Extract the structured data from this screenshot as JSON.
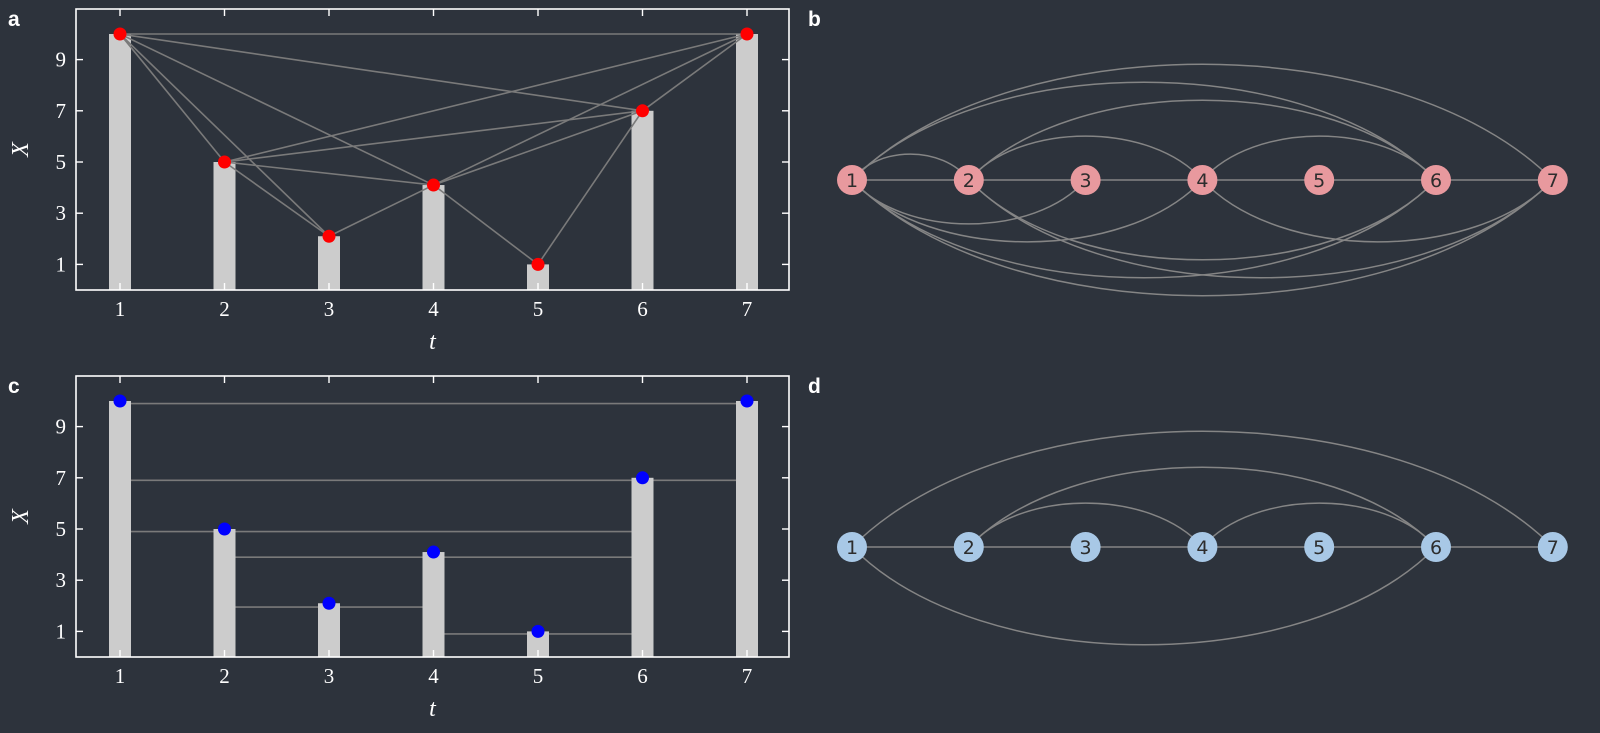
{
  "panels": {
    "a": {
      "letter": "a"
    },
    "b": {
      "letter": "b"
    },
    "c": {
      "letter": "c"
    },
    "d": {
      "letter": "d"
    }
  },
  "chart_data": [
    {
      "type": "bar",
      "panel": "a",
      "x": [
        1,
        2,
        3,
        4,
        5,
        6,
        7
      ],
      "values": [
        10,
        5,
        2.1,
        4.1,
        1,
        7,
        10
      ],
      "xlabel": "t",
      "ylabel": "X",
      "xticks": [
        "1",
        "2",
        "3",
        "4",
        "5",
        "6",
        "7"
      ],
      "yticks": [
        "1",
        "3",
        "5",
        "7",
        "9"
      ],
      "ylim": [
        0,
        10
      ],
      "marker_color": "#ff0000",
      "edges": [
        [
          1,
          2
        ],
        [
          1,
          3
        ],
        [
          1,
          4
        ],
        [
          1,
          6
        ],
        [
          1,
          7
        ],
        [
          2,
          3
        ],
        [
          2,
          4
        ],
        [
          2,
          6
        ],
        [
          2,
          7
        ],
        [
          3,
          4
        ],
        [
          4,
          5
        ],
        [
          4,
          6
        ],
        [
          4,
          7
        ],
        [
          5,
          6
        ],
        [
          6,
          7
        ]
      ]
    },
    {
      "type": "bar",
      "panel": "c",
      "x": [
        1,
        2,
        3,
        4,
        5,
        6,
        7
      ],
      "values": [
        10,
        5,
        2.1,
        4.1,
        1,
        7,
        10
      ],
      "xlabel": "t",
      "ylabel": "X",
      "xticks": [
        "1",
        "2",
        "3",
        "4",
        "5",
        "6",
        "7"
      ],
      "yticks": [
        "1",
        "3",
        "5",
        "7",
        "9"
      ],
      "ylim": [
        0,
        10
      ],
      "marker_color": "#0000ff",
      "hlines": [
        {
          "from": 1,
          "to": 7,
          "y": 9.9
        },
        {
          "from": 1,
          "to": 6,
          "y": 6.9
        },
        {
          "from": 1,
          "to": 2,
          "y": 4.9
        },
        {
          "from": 2,
          "to": 6,
          "y": 4.9
        },
        {
          "from": 2,
          "to": 4,
          "y": 3.9
        },
        {
          "from": 4,
          "to": 6,
          "y": 3.9
        },
        {
          "from": 2,
          "to": 3,
          "y": 1.95
        },
        {
          "from": 3,
          "to": 4,
          "y": 1.95
        },
        {
          "from": 4,
          "to": 5,
          "y": 0.9
        },
        {
          "from": 5,
          "to": 6,
          "y": 0.9
        },
        {
          "from": 6,
          "to": 7,
          "y": 6.9
        }
      ]
    }
  ],
  "graphs": [
    {
      "panel": "b",
      "node_color": "#e8999e",
      "nodes": [
        "1",
        "2",
        "3",
        "4",
        "5",
        "6",
        "7"
      ],
      "edges_above": [
        [
          1,
          2
        ],
        [
          1,
          6
        ],
        [
          1,
          7
        ],
        [
          2,
          4
        ],
        [
          2,
          6
        ],
        [
          4,
          6
        ]
      ],
      "edges_below": [
        [
          1,
          3
        ],
        [
          1,
          4
        ],
        [
          1,
          6
        ],
        [
          2,
          7
        ],
        [
          4,
          7
        ],
        [
          2,
          6
        ],
        [
          1,
          7
        ]
      ],
      "edges_line": [
        [
          1,
          2
        ],
        [
          2,
          3
        ],
        [
          3,
          4
        ],
        [
          4,
          5
        ],
        [
          5,
          6
        ],
        [
          6,
          7
        ]
      ]
    },
    {
      "panel": "d",
      "node_color": "#a8c8e6",
      "nodes": [
        "1",
        "2",
        "3",
        "4",
        "5",
        "6",
        "7"
      ],
      "edges_above": [
        [
          1,
          7
        ],
        [
          2,
          6
        ],
        [
          2,
          4
        ],
        [
          4,
          6
        ]
      ],
      "edges_below": [
        [
          1,
          6
        ]
      ],
      "edges_line": [
        [
          1,
          2
        ],
        [
          2,
          3
        ],
        [
          3,
          4
        ],
        [
          4,
          5
        ],
        [
          5,
          6
        ],
        [
          6,
          7
        ]
      ]
    }
  ]
}
